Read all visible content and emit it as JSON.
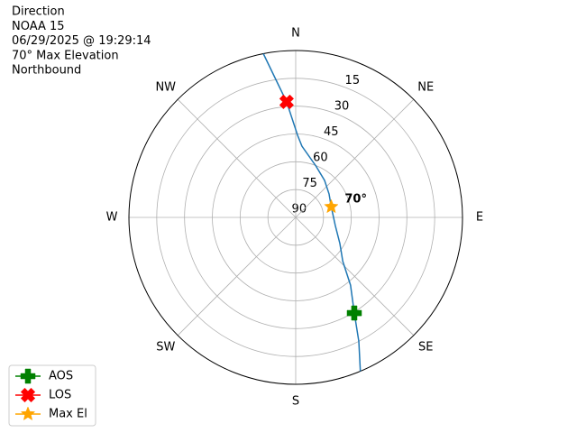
{
  "chart_data": {
    "type": "polar",
    "title_lines": [
      "Direction",
      "NOAA 15",
      "06/29/2025 @ 19:29:14",
      "70° Max Elevation",
      "Northbound"
    ],
    "thetaticks": [
      0,
      45,
      90,
      135,
      180,
      225,
      270,
      315
    ],
    "theta_labels": [
      "N",
      "NE",
      "E",
      "SE",
      "S",
      "SW",
      "W",
      "NW"
    ],
    "ylim": [
      90,
      0
    ],
    "yticks": [
      15,
      30,
      45,
      60,
      75,
      90
    ],
    "grid": true,
    "track": {
      "color": "#1f77b4",
      "x": [
        157.2,
        153,
        148.5,
        141,
        133,
        120.6,
        101.6,
        73.3,
        54.9,
        38,
        21.4,
        5,
        1.3,
        355.5,
        348.8
      ],
      "y": [
        0,
        15,
        29.5,
        43,
        55.3,
        62.3,
        68.2,
        70,
        68,
        64.7,
        60.2,
        51.4,
        45.7,
        27.5,
        0
      ]
    },
    "series": [
      {
        "name": "AOS",
        "color": "#008000",
        "marker": "plus",
        "x": [
          148.5
        ],
        "y": [
          29.5
        ]
      },
      {
        "name": "LOS",
        "color": "#ff0000",
        "marker": "x",
        "x": [
          355.5
        ],
        "y": [
          27.5
        ]
      },
      {
        "name": "Max El",
        "color": "#ffa500",
        "marker": "star",
        "x": [
          73.3
        ],
        "y": [
          70
        ]
      }
    ],
    "annotation": "70°",
    "legend": "lower left"
  }
}
